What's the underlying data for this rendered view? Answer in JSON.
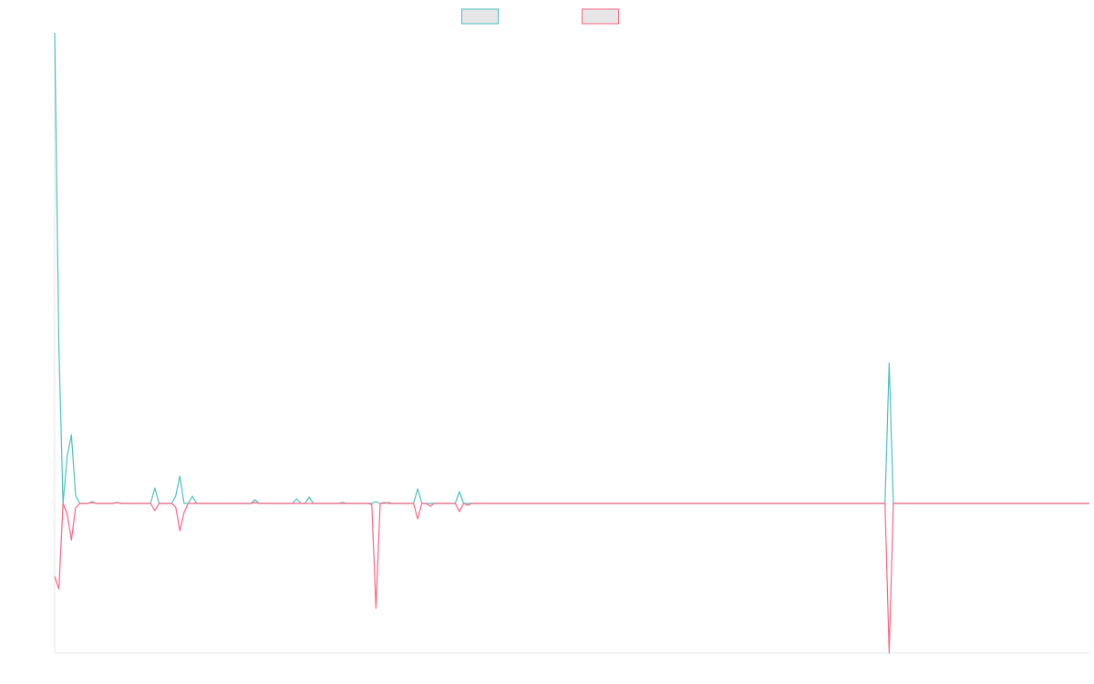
{
  "chart_data": {
    "type": "line",
    "ylim": [
      -164,
      516
    ],
    "series": [
      {
        "color": "#4bc0c0",
        "values": [
          516,
          172,
          0,
          52,
          75,
          9,
          0,
          0,
          0,
          2,
          0,
          0,
          0,
          0,
          0,
          1,
          0,
          0,
          0,
          0,
          0,
          0,
          0,
          0,
          17,
          0,
          0,
          0,
          0,
          8,
          30,
          0,
          0,
          8,
          0,
          0,
          0,
          0,
          0,
          0,
          0,
          0,
          0,
          0,
          0,
          0,
          0,
          0,
          4,
          0,
          0,
          0,
          0,
          0,
          0,
          0,
          0,
          0,
          5,
          0,
          0,
          7,
          0,
          0,
          0,
          0,
          0,
          0,
          0,
          1,
          0,
          0,
          0,
          0,
          0,
          0,
          0,
          2,
          0,
          0,
          1,
          0,
          0,
          0,
          0,
          0,
          0,
          16,
          0,
          0,
          0,
          0,
          0,
          0,
          0,
          0,
          0,
          13,
          0,
          0,
          0,
          0,
          0,
          0,
          0,
          0,
          0,
          0,
          0,
          0,
          0,
          0,
          0,
          0,
          0,
          0,
          0,
          0,
          0,
          0,
          0,
          0,
          0,
          0,
          0,
          0,
          0,
          0,
          0,
          0,
          0,
          0,
          0,
          0,
          0,
          0,
          0,
          0,
          0,
          0,
          0,
          0,
          0,
          0,
          0,
          0,
          0,
          0,
          0,
          0,
          0,
          0,
          0,
          0,
          0,
          0,
          0,
          0,
          0,
          0,
          0,
          0,
          0,
          0,
          0,
          0,
          0,
          0,
          0,
          0,
          0,
          0,
          0,
          0,
          0,
          0,
          0,
          0,
          0,
          0,
          0,
          0,
          0,
          0,
          0,
          0,
          0,
          0,
          0,
          0,
          0,
          0,
          0,
          0,
          0,
          0,
          0,
          0,
          0,
          0,
          154,
          0,
          0,
          0,
          0,
          0,
          0,
          0,
          0,
          0,
          0,
          0,
          0,
          0,
          0,
          0,
          0,
          0,
          0,
          0,
          0,
          0,
          0,
          0,
          0,
          0,
          0,
          0,
          0,
          0,
          0,
          0,
          0,
          0,
          0,
          0,
          0,
          0,
          0,
          0,
          0,
          0,
          0,
          0,
          0,
          0,
          0,
          0,
          0
        ]
      },
      {
        "color": "#ff6384",
        "values": [
          -80,
          -94,
          0,
          -12,
          -40,
          -5,
          0,
          0,
          0,
          1,
          0,
          0,
          0,
          0,
          0,
          1,
          0,
          0,
          0,
          0,
          0,
          0,
          0,
          0,
          -8,
          0,
          0,
          0,
          0,
          -4,
          -30,
          -10,
          0,
          0,
          0,
          0,
          0,
          0,
          0,
          0,
          0,
          0,
          0,
          0,
          0,
          0,
          0,
          0,
          1,
          0,
          0,
          0,
          0,
          0,
          0,
          0,
          0,
          0,
          0,
          0,
          0,
          0,
          0,
          0,
          0,
          0,
          0,
          0,
          0,
          0,
          0,
          0,
          0,
          0,
          0,
          0,
          -1,
          -115,
          0,
          1,
          0,
          0,
          0,
          0,
          0,
          0,
          0,
          -17,
          0,
          0,
          -3,
          0,
          0,
          0,
          0,
          0,
          0,
          -9,
          0,
          -2,
          0,
          0,
          0,
          0,
          0,
          0,
          0,
          0,
          0,
          0,
          0,
          0,
          0,
          0,
          0,
          0,
          0,
          0,
          0,
          0,
          0,
          0,
          0,
          0,
          0,
          0,
          0,
          0,
          0,
          0,
          0,
          0,
          0,
          0,
          0,
          0,
          0,
          0,
          0,
          0,
          0,
          0,
          0,
          0,
          0,
          0,
          0,
          0,
          0,
          0,
          0,
          0,
          0,
          0,
          0,
          0,
          0,
          0,
          0,
          0,
          0,
          0,
          0,
          0,
          0,
          0,
          0,
          0,
          0,
          0,
          0,
          0,
          0,
          0,
          0,
          0,
          0,
          0,
          0,
          0,
          0,
          0,
          0,
          0,
          0,
          0,
          0,
          0,
          0,
          0,
          0,
          0,
          0,
          0,
          0,
          0,
          0,
          0,
          0,
          0,
          -164,
          0,
          0,
          0,
          0,
          0,
          0,
          0,
          0,
          0,
          0,
          0,
          0,
          0,
          0,
          0,
          0,
          0,
          0,
          0,
          0,
          0,
          0,
          0,
          0,
          0,
          0,
          0,
          0,
          0,
          0,
          0,
          0,
          0,
          0,
          0,
          0,
          0,
          0,
          0,
          0,
          0,
          0,
          0,
          0,
          0,
          0,
          0,
          0
        ]
      }
    ]
  }
}
